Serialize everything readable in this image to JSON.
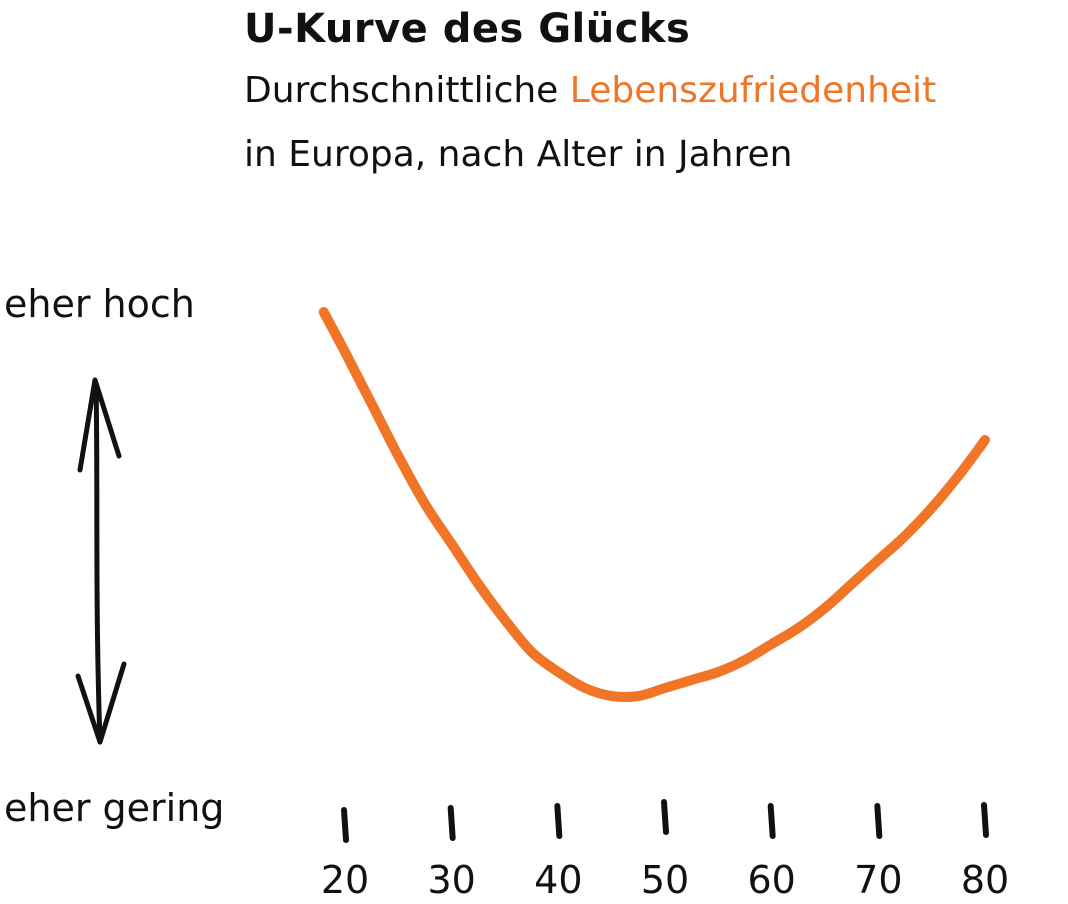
{
  "chart_data": {
    "type": "line",
    "title": "U-Kurve des Glücks",
    "subtitle_part1": "Durchschnittliche",
    "subtitle_highlight": "Lebenszufriedenheit",
    "subtitle_line2": "in Europa, nach Alter in Jahren",
    "y_high_label": "eher hoch",
    "y_low_label": "eher gering",
    "x_ticks": [
      "20",
      "30",
      "40",
      "50",
      "60",
      "70",
      "80"
    ],
    "xlim": [
      20,
      80
    ],
    "ylim": [
      0,
      1
    ],
    "y_axis_numeric_labels": false,
    "grid": false,
    "series": [
      {
        "color": "#F07527",
        "x": [
          18,
          20,
          22.5,
          25,
          27.5,
          30,
          32.5,
          35,
          37.5,
          40,
          42.5,
          45,
          47.5,
          50,
          52.5,
          55,
          57.5,
          60,
          62.5,
          65,
          67.5,
          70,
          72.5,
          75,
          77.5,
          80
        ],
        "y": [
          0.96,
          0.86,
          0.73,
          0.6,
          0.48,
          0.38,
          0.28,
          0.19,
          0.11,
          0.06,
          0.02,
          0.0,
          0.0,
          0.02,
          0.04,
          0.06,
          0.09,
          0.13,
          0.17,
          0.22,
          0.28,
          0.34,
          0.4,
          0.47,
          0.55,
          0.64
        ]
      }
    ]
  }
}
